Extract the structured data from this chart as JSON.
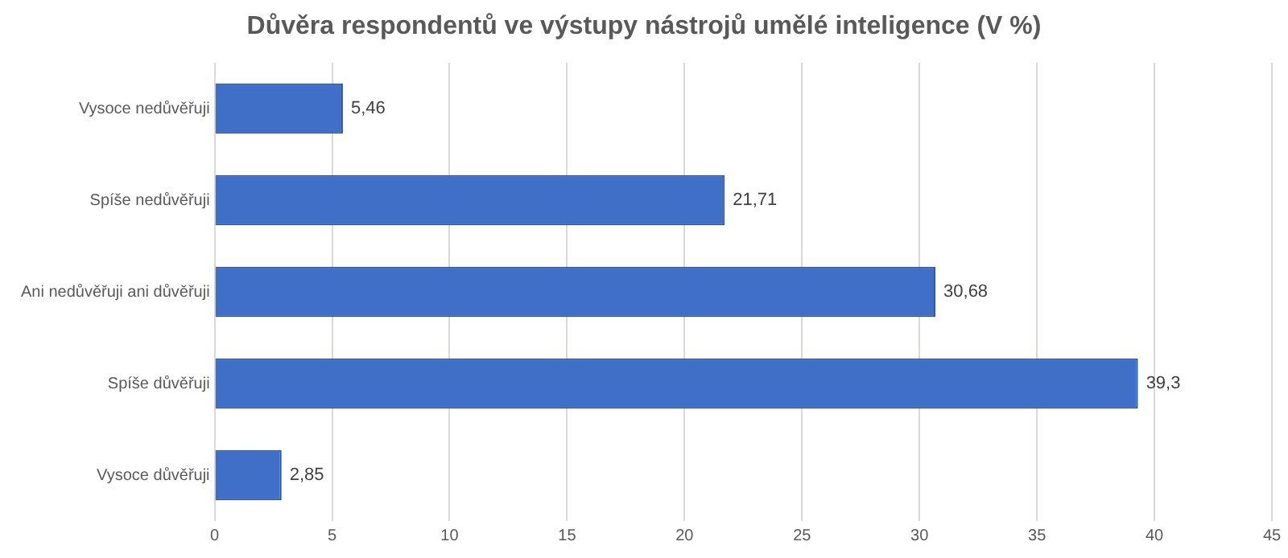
{
  "chart_data": {
    "type": "bar",
    "orientation": "horizontal",
    "title": "Důvěra respondentů ve výstupy nástrojů umělé inteligence (V %)",
    "categories": [
      "Vysoce nedůvěřuji",
      "Spíše nedůvěřuji",
      "Ani nedůvěřuji ani důvěřuji",
      "Spíše důvěřuji",
      "Vysoce důvěřuji"
    ],
    "values": [
      5.46,
      21.71,
      30.68,
      39.3,
      2.85
    ],
    "value_labels": [
      "5,46",
      "21,71",
      "30,68",
      "39,3",
      "2,85"
    ],
    "color": "#3f6fc6",
    "xlim": [
      0,
      45
    ],
    "xticks": [
      0,
      5,
      10,
      15,
      20,
      25,
      30,
      35,
      40,
      45
    ],
    "grid": "x",
    "legend": false
  }
}
